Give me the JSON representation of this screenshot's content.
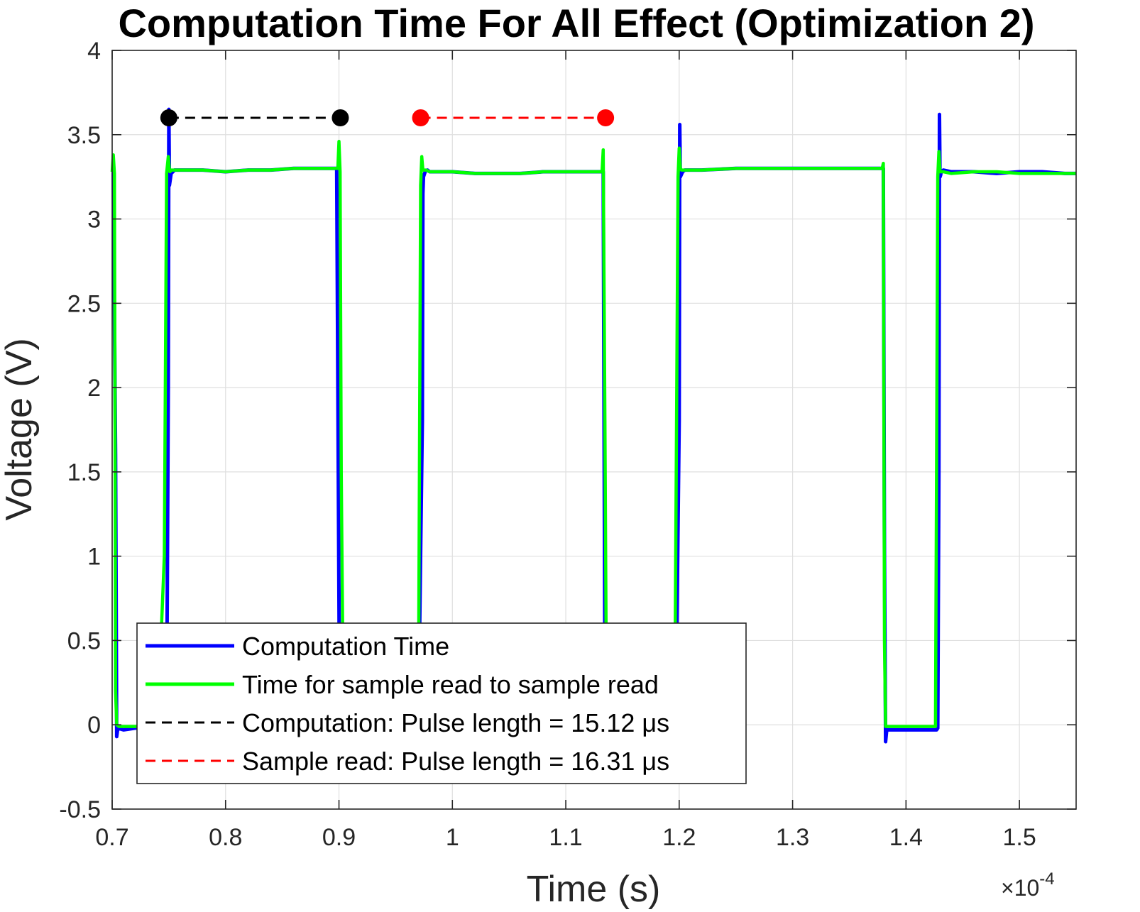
{
  "chart_data": {
    "type": "line",
    "title": "Computation Time For All Effect (Optimization 2)",
    "xlabel": "Time (s)",
    "ylabel": "Voltage (V)",
    "x_exponent_label": "×10",
    "x_exponent_power": "-4",
    "xlim": [
      0.7,
      1.55
    ],
    "ylim": [
      -0.5,
      4
    ],
    "x_scale_factor": 0.0001,
    "xticks": [
      0.7,
      0.8,
      0.9,
      1,
      1.1,
      1.2,
      1.3,
      1.4,
      1.5
    ],
    "xtick_labels": [
      "0.7",
      "0.8",
      "0.9",
      "1",
      "1.1",
      "1.2",
      "1.3",
      "1.4",
      "1.5"
    ],
    "yticks": [
      -0.5,
      0,
      0.5,
      1,
      1.5,
      2,
      2.5,
      3,
      3.5,
      4
    ],
    "ytick_labels": [
      "-0.5",
      "0",
      "0.5",
      "1",
      "1.5",
      "2",
      "2.5",
      "3",
      "3.5",
      "4"
    ],
    "grid": true,
    "legend_position": "bottom-left",
    "series": [
      {
        "name": "Computation Time",
        "color": "#0000ff",
        "style": "solid",
        "x": [
          0.7,
          0.701,
          0.703,
          0.704,
          0.705,
          0.71,
          0.72,
          0.74,
          0.748,
          0.7495,
          0.75,
          0.7505,
          0.752,
          0.755,
          0.76,
          0.78,
          0.8,
          0.82,
          0.84,
          0.86,
          0.88,
          0.898,
          0.9005,
          0.901,
          0.904,
          0.91,
          0.94,
          0.97,
          0.9735,
          0.974,
          0.9745,
          0.976,
          0.978,
          0.98,
          1.0,
          1.02,
          1.04,
          1.06,
          1.08,
          1.1,
          1.12,
          1.133,
          1.1345,
          1.135,
          1.138,
          1.15,
          1.18,
          1.197,
          1.2,
          1.2005,
          1.201,
          1.203,
          1.205,
          1.22,
          1.25,
          1.28,
          1.31,
          1.34,
          1.37,
          1.38,
          1.381,
          1.382,
          1.383,
          1.385,
          1.39,
          1.4,
          1.41,
          1.42,
          1.427,
          1.428,
          1.429,
          1.4295,
          1.43,
          1.4305,
          1.431,
          1.433,
          1.44,
          1.46,
          1.48,
          1.5,
          1.52,
          1.54,
          1.55
        ],
        "y": [
          3.28,
          3.28,
          1.6,
          -0.07,
          -0.02,
          -0.03,
          -0.02,
          -0.01,
          -0.01,
          2.0,
          3.65,
          3.2,
          3.27,
          3.29,
          3.29,
          3.29,
          3.28,
          3.29,
          3.29,
          3.3,
          3.3,
          3.3,
          0.1,
          -0.03,
          -0.02,
          -0.02,
          -0.01,
          -0.02,
          1.8,
          3.15,
          3.25,
          3.28,
          3.29,
          3.28,
          3.28,
          3.27,
          3.27,
          3.27,
          3.28,
          3.28,
          3.28,
          3.28,
          0.3,
          -0.03,
          -0.02,
          -0.02,
          -0.02,
          -0.02,
          1.8,
          3.56,
          3.25,
          3.28,
          3.29,
          3.29,
          3.3,
          3.3,
          3.3,
          3.3,
          3.3,
          3.3,
          1.0,
          -0.1,
          -0.03,
          -0.03,
          -0.03,
          -0.03,
          -0.03,
          -0.03,
          -0.03,
          -0.02,
          1.5,
          3.62,
          3.25,
          3.26,
          3.28,
          3.29,
          3.28,
          3.28,
          3.27,
          3.28,
          3.28,
          3.27,
          3.27
        ]
      },
      {
        "name": "Time for sample read to sample read",
        "color": "#00ff00",
        "style": "solid",
        "x": [
          0.7,
          0.701,
          0.702,
          0.7025,
          0.703,
          0.704,
          0.706,
          0.708,
          0.71,
          0.72,
          0.74,
          0.746,
          0.748,
          0.7495,
          0.7505,
          0.751,
          0.752,
          0.753,
          0.755,
          0.76,
          0.78,
          0.8,
          0.82,
          0.84,
          0.86,
          0.88,
          0.899,
          0.9,
          0.901,
          0.902,
          0.904,
          0.906,
          0.91,
          0.94,
          0.97,
          0.972,
          0.973,
          0.974,
          0.975,
          0.977,
          0.98,
          1.0,
          1.02,
          1.04,
          1.06,
          1.08,
          1.1,
          1.12,
          1.132,
          1.133,
          1.1345,
          1.136,
          1.138,
          1.15,
          1.18,
          1.196,
          1.199,
          1.2,
          1.201,
          1.202,
          1.204,
          1.22,
          1.25,
          1.28,
          1.31,
          1.34,
          1.37,
          1.379,
          1.38,
          1.381,
          1.382,
          1.384,
          1.39,
          1.4,
          1.41,
          1.42,
          1.426,
          1.428,
          1.429,
          1.43,
          1.431,
          1.433,
          1.44,
          1.46,
          1.48,
          1.5,
          1.52,
          1.54,
          1.55
        ],
        "y": [
          3.28,
          3.38,
          3.27,
          2.0,
          0.2,
          0.0,
          -0.01,
          -0.01,
          -0.01,
          -0.01,
          -0.01,
          1.0,
          3.27,
          3.37,
          3.29,
          3.28,
          3.29,
          3.29,
          3.29,
          3.29,
          3.29,
          3.28,
          3.29,
          3.29,
          3.3,
          3.3,
          3.3,
          3.46,
          3.28,
          1.5,
          0.0,
          -0.01,
          -0.01,
          -0.01,
          -0.01,
          3.2,
          3.37,
          3.29,
          3.29,
          3.29,
          3.28,
          3.28,
          3.27,
          3.27,
          3.27,
          3.28,
          3.28,
          3.28,
          3.28,
          3.41,
          1.8,
          -0.01,
          -0.01,
          -0.01,
          -0.01,
          -0.01,
          3.25,
          3.42,
          3.3,
          3.29,
          3.29,
          3.29,
          3.3,
          3.3,
          3.3,
          3.3,
          3.3,
          3.3,
          3.33,
          0.5,
          -0.01,
          -0.01,
          -0.01,
          -0.01,
          -0.01,
          -0.01,
          -0.01,
          3.25,
          3.4,
          3.28,
          3.28,
          3.28,
          3.27,
          3.28,
          3.28,
          3.27,
          3.27,
          3.27,
          3.27
        ]
      },
      {
        "name": "Computation: Pulse length = 15.12 μs",
        "color": "#000000",
        "style": "dashed",
        "marker": "circle",
        "x": [
          0.75,
          0.9012
        ],
        "y": [
          3.6,
          3.6
        ]
      },
      {
        "name": "Sample read: Pulse length = 16.31 μs",
        "color": "#ff0000",
        "style": "dashed",
        "marker": "circle",
        "x": [
          0.972,
          1.1351
        ],
        "y": [
          3.6,
          3.6
        ]
      }
    ]
  }
}
